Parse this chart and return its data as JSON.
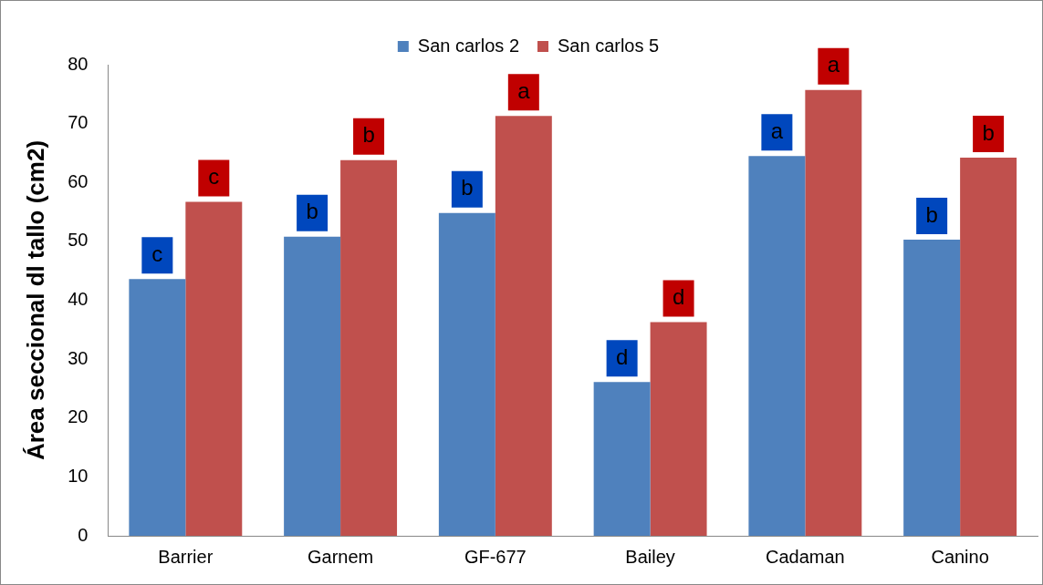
{
  "chart_data": {
    "type": "bar",
    "ylabel": "Área seccional dl tallo (cm2)",
    "categories": [
      "Barrier",
      "Garnem",
      "GF-677",
      "Bailey",
      "Cadaman",
      "Canino"
    ],
    "series": [
      {
        "name": "San carlos 2",
        "color": "#4f81bd",
        "values": [
          43.6,
          50.8,
          54.8,
          26.1,
          64.5,
          50.3
        ],
        "value_labels": [
          "c",
          "b",
          "b",
          "d",
          "a",
          "b"
        ]
      },
      {
        "name": "San carlos 5",
        "color": "#c0504d",
        "values": [
          56.7,
          63.8,
          71.3,
          36.3,
          75.7,
          64.2
        ],
        "value_labels": [
          "c",
          "b",
          "a",
          "d",
          "a",
          "b"
        ]
      }
    ],
    "ylim": [
      0,
      80
    ],
    "yticks": [
      0,
      10,
      20,
      30,
      40,
      50,
      60,
      70,
      80
    ],
    "grid": false,
    "legend": "top"
  }
}
